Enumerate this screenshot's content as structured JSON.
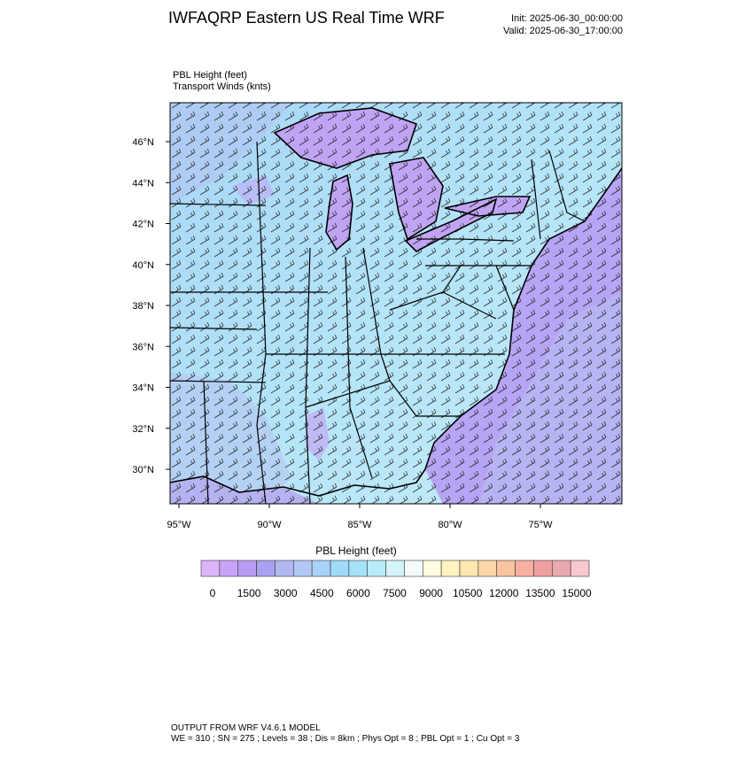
{
  "header": {
    "title": "IWFAQRP Eastern US Real Time WRF",
    "init": "Init: 2025-06-30_00:00:00",
    "valid": "Valid: 2025-06-30_17:00:00"
  },
  "fields": {
    "primary": "PBL Height   (feet)",
    "secondary": "Transport Winds   (knts)"
  },
  "map": {
    "lat_labels": [
      "46°N",
      "44°N",
      "42°N",
      "40°N",
      "38°N",
      "36°N",
      "34°N",
      "32°N",
      "30°N"
    ],
    "lon_labels": [
      "95°W",
      "90°W",
      "85°W",
      "80°W",
      "75°W"
    ]
  },
  "colorbar": {
    "title": "PBL Height  (feet)",
    "colors": [
      "#dcb4fa",
      "#c8a4f8",
      "#b89cf2",
      "#a8a2f0",
      "#b2b8f2",
      "#b2c8f4",
      "#a8d2f8",
      "#a0daf8",
      "#a4e2f8",
      "#b8ecf8",
      "#d4f4fa",
      "#f4fafa",
      "#fffce0",
      "#fff4c0",
      "#fde8b0",
      "#fcd8a8",
      "#fac4a0",
      "#f8b0a0",
      "#f0a0a0",
      "#eaa8b0",
      "#f8c8d0"
    ],
    "labels": [
      0,
      1500,
      3000,
      4500,
      6000,
      7500,
      9000,
      10500,
      12000,
      13500,
      15000
    ]
  },
  "footer": {
    "line1": "OUTPUT FROM WRF V4.6.1 MODEL",
    "line2": "WE = 310 ; SN = 275 ; Levels = 38 ; Dis = 8km ; Phys Opt = 8 ; PBL Opt = 1 ; Cu Opt = 3"
  }
}
